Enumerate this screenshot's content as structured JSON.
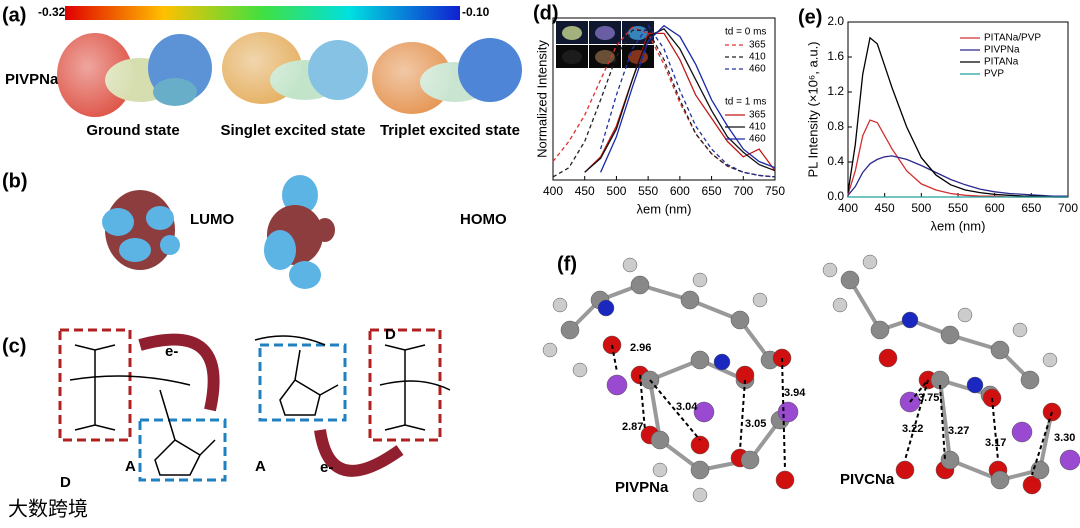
{
  "panels": {
    "a": {
      "label": "(a)",
      "colorbar_min": "-0.32",
      "colorbar_max": "-0.10",
      "molecule": "PIVPNa",
      "states": [
        "Ground state",
        "Singlet excited state",
        "Triplet excited state"
      ]
    },
    "b": {
      "label": "(b)",
      "orbitals": [
        "LUMO",
        "HOMO"
      ]
    },
    "c": {
      "label": "(c)",
      "electron_labels": [
        "e-",
        "e-"
      ],
      "donor_labels": [
        "D",
        "D"
      ],
      "acceptor_labels": [
        "A",
        "A"
      ]
    },
    "f": {
      "label": "(f)",
      "left": {
        "name": "PIVPNa",
        "distances": [
          "2.96",
          "3.04",
          "2.87",
          "3.05",
          "3.94"
        ]
      },
      "right": {
        "name": "PIVCNa",
        "distances": [
          "3.75",
          "3.22",
          "3.27",
          "3.17",
          "3.30"
        ]
      }
    }
  },
  "watermark": "大数跨境",
  "chart_data": [
    {
      "type": "line",
      "label": "(d)",
      "xlabel": "λem (nm)",
      "ylabel": "Normalized Intensity",
      "legend_titles": [
        "td = 0 ms",
        "td = 1 ms"
      ],
      "x": [
        400,
        425,
        450,
        475,
        500,
        525,
        550,
        575,
        600,
        625,
        650,
        675,
        700,
        725,
        750
      ],
      "xlim": [
        400,
        750
      ],
      "xticks": [
        400,
        450,
        500,
        550,
        600,
        650,
        700,
        750
      ],
      "ylim": [
        0,
        1.05
      ],
      "series": [
        {
          "name": "365",
          "color": "#e03030",
          "dash": true,
          "group": 0,
          "values": [
            0.12,
            0.25,
            0.42,
            0.65,
            0.87,
            0.99,
            0.95,
            0.75,
            0.5,
            0.3,
            0.17,
            0.09,
            0.05,
            0.03,
            0.02
          ]
        },
        {
          "name": "410",
          "color": "#222222",
          "dash": true,
          "group": 0,
          "values": [
            0.02,
            0.08,
            0.25,
            0.52,
            0.8,
            0.97,
            0.97,
            0.78,
            0.52,
            0.3,
            0.17,
            0.09,
            0.05,
            0.03,
            0.02
          ]
        },
        {
          "name": "460",
          "color": "#2030a0",
          "dash": true,
          "group": 0,
          "values": [
            null,
            null,
            null,
            0.2,
            0.55,
            0.85,
            1.0,
            0.85,
            0.58,
            0.35,
            0.2,
            0.1,
            0.05,
            0.03,
            0.02
          ]
        },
        {
          "name": "365",
          "color": "#c01818",
          "dash": false,
          "group": 1,
          "values": [
            null,
            null,
            0.05,
            0.15,
            0.35,
            0.65,
            0.95,
            0.95,
            0.78,
            0.55,
            0.4,
            0.25,
            0.15,
            0.2,
            0.06
          ]
        },
        {
          "name": "410",
          "color": "#111111",
          "dash": false,
          "group": 1,
          "values": [
            null,
            null,
            0.05,
            0.14,
            0.33,
            0.65,
            0.93,
            0.98,
            0.85,
            0.65,
            0.45,
            0.28,
            0.18,
            0.1,
            0.06
          ]
        },
        {
          "name": "460",
          "color": "#1a2aa8",
          "dash": false,
          "group": 1,
          "values": [
            null,
            null,
            null,
            0.05,
            0.28,
            0.6,
            0.9,
            1.0,
            0.93,
            0.75,
            0.52,
            0.35,
            0.2,
            0.12,
            0.08
          ]
        }
      ]
    },
    {
      "type": "line",
      "label": "(e)",
      "xlabel": "λem (nm)",
      "ylabel": "PL Intensity (×10⁶, a.u.)",
      "x": [
        400,
        410,
        420,
        430,
        440,
        450,
        460,
        480,
        500,
        520,
        540,
        560,
        580,
        600,
        620,
        640,
        660,
        680,
        700
      ],
      "xlim": [
        400,
        700
      ],
      "xticks": [
        400,
        450,
        500,
        550,
        600,
        650,
        700
      ],
      "ylim": [
        0,
        2
      ],
      "yticks": [
        {
          "value": 0,
          "label": "0.0"
        },
        0.4,
        0.8,
        1.2,
        1.6,
        {
          "value": 2,
          "label": "2.0"
        }
      ],
      "series": [
        {
          "name": "PITANa/PVP",
          "color": "#d03030",
          "values": [
            0.03,
            0.3,
            0.7,
            0.88,
            0.85,
            0.7,
            0.55,
            0.3,
            0.15,
            0.08,
            0.04,
            0.02,
            0.01,
            0.01,
            0,
            0,
            0,
            0,
            0
          ]
        },
        {
          "name": "PIVPNa",
          "color": "#2a2a90",
          "values": [
            0.02,
            0.12,
            0.28,
            0.38,
            0.43,
            0.46,
            0.47,
            0.43,
            0.36,
            0.28,
            0.2,
            0.14,
            0.09,
            0.06,
            0.04,
            0.03,
            0.02,
            0.01,
            0.01
          ]
        },
        {
          "name": "PITANa",
          "color": "#000000",
          "values": [
            0.05,
            0.6,
            1.4,
            1.82,
            1.75,
            1.5,
            1.25,
            0.8,
            0.45,
            0.25,
            0.14,
            0.08,
            0.05,
            0.03,
            0.02,
            0.01,
            0.01,
            0,
            0
          ]
        },
        {
          "name": "PVP",
          "color": "#20a0a0",
          "values": [
            0,
            0,
            0,
            0,
            0,
            0,
            0,
            0,
            0,
            0,
            0,
            0,
            0,
            0,
            0,
            0,
            0,
            0,
            0
          ]
        }
      ]
    }
  ]
}
